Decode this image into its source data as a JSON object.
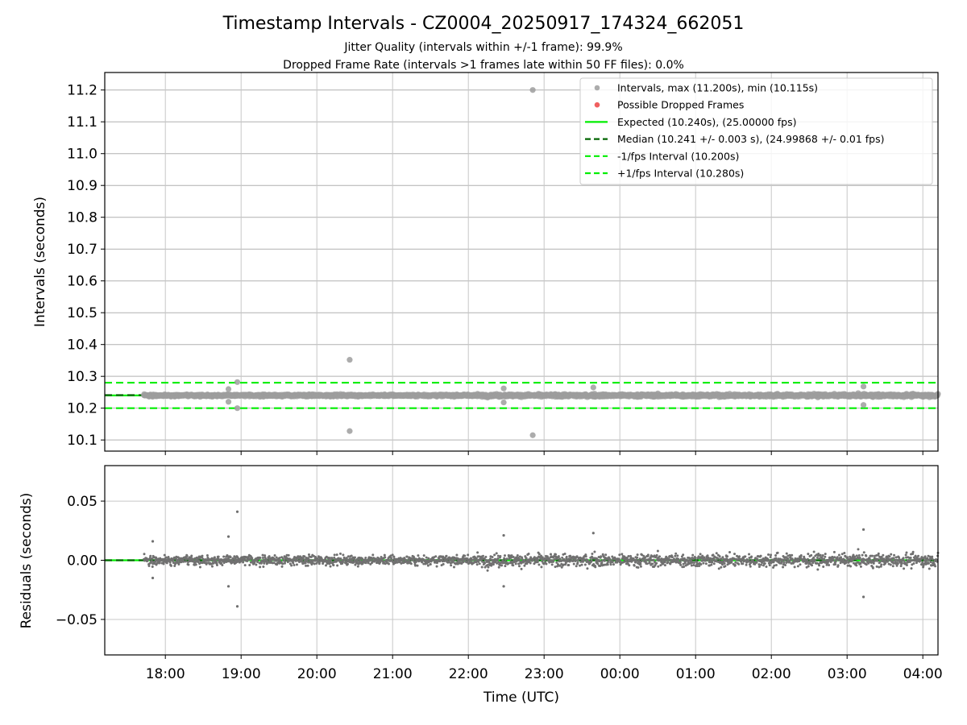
{
  "title": "Timestamp Intervals - CZ0004_20250917_174324_662051",
  "subtitle_1": "Jitter Quality (intervals within +/-1 frame): 99.9%",
  "subtitle_2": "Dropped Frame Rate (intervals >1 frames late within 50 FF files): 0.0%",
  "chart_data": [
    {
      "type": "scatter",
      "name": "intervals-panel",
      "ylabel": "Intervals (seconds)",
      "ylim": [
        10.065,
        11.255
      ],
      "yticks": [
        10.1,
        10.2,
        10.3,
        10.4,
        10.5,
        10.6,
        10.7,
        10.8,
        10.9,
        11.0,
        11.1,
        11.2
      ],
      "ytick_labels": [
        "10.1",
        "10.2",
        "10.3",
        "10.4",
        "10.5",
        "10.6",
        "10.7",
        "10.8",
        "10.9",
        "11.0",
        "11.1",
        "11.2"
      ],
      "grid": true,
      "legend_position": "top-right",
      "colors": {
        "intervals": "#9e9e9e",
        "dropped": "#f06060",
        "expected": "#00ee00",
        "median": "#006400",
        "minus_fps": "#00ee00",
        "plus_fps": "#00ee00"
      },
      "legend": [
        {
          "key": "intervals",
          "label": "Intervals, max (11.200s), min (10.115s)"
        },
        {
          "key": "dropped",
          "label": "Possible Dropped Frames"
        },
        {
          "key": "expected",
          "label": "Expected (10.240s), (25.00000 fps)"
        },
        {
          "key": "median",
          "label": "Median (10.241 +/- 0.003 s), (24.99868 +/- 0.01 fps)"
        },
        {
          "key": "minus_fps",
          "label": "-1/fps Interval (10.200s)"
        },
        {
          "key": "plus_fps",
          "label": "+1/fps Interval (10.280s)"
        }
      ],
      "reference_lines": {
        "expected": 10.24,
        "median": 10.241,
        "minus_fps": 10.2,
        "plus_fps": 10.28
      },
      "series": [
        {
          "name": "Intervals, max (11.200s), min (10.115s)",
          "typical": 10.24,
          "spread": 0.003,
          "start": "17:43",
          "end": "04:12",
          "count": 2300
        },
        {
          "name": "Possible Dropped Frames",
          "count": 0
        }
      ],
      "outliers": [
        {
          "x": "18:50",
          "y": 10.26
        },
        {
          "x": "18:50",
          "y": 10.22
        },
        {
          "x": "18:57",
          "y": 10.282
        },
        {
          "x": "18:57",
          "y": 10.2
        },
        {
          "x": "20:26",
          "y": 10.352
        },
        {
          "x": "20:26",
          "y": 10.128
        },
        {
          "x": "22:28",
          "y": 10.262
        },
        {
          "x": "22:28",
          "y": 10.218
        },
        {
          "x": "22:51",
          "y": 11.2
        },
        {
          "x": "22:51",
          "y": 10.115
        },
        {
          "x": "23:39",
          "y": 10.265
        },
        {
          "x": "03:13",
          "y": 10.268
        },
        {
          "x": "03:13",
          "y": 10.21
        }
      ]
    },
    {
      "type": "scatter",
      "name": "residuals-panel",
      "ylabel": "Residuals (seconds)",
      "xlabel": "Time (UTC)",
      "ylim": [
        -0.08,
        0.08
      ],
      "yticks": [
        -0.05,
        0.0,
        0.05
      ],
      "ytick_labels": [
        "−0.05",
        "0.00",
        "0.05"
      ],
      "x_range": [
        "17:12",
        "04:12"
      ],
      "xtick_labels": [
        "18:00",
        "19:00",
        "20:00",
        "21:00",
        "22:00",
        "23:00",
        "00:00",
        "01:00",
        "02:00",
        "03:00",
        "04:00"
      ],
      "grid": true,
      "colors": {
        "residuals": "#707070",
        "zero_expected": "#00ee00",
        "zero_median": "#006400"
      },
      "series": [
        {
          "name": "residuals",
          "typical": 0.0,
          "spread": 0.004,
          "count": 2300
        }
      ],
      "outliers": [
        {
          "x": "17:50",
          "y": 0.016
        },
        {
          "x": "17:50",
          "y": -0.015
        },
        {
          "x": "18:50",
          "y": 0.02
        },
        {
          "x": "18:50",
          "y": -0.022
        },
        {
          "x": "18:57",
          "y": 0.041
        },
        {
          "x": "18:57",
          "y": -0.039
        },
        {
          "x": "22:28",
          "y": 0.021
        },
        {
          "x": "22:28",
          "y": -0.022
        },
        {
          "x": "23:39",
          "y": 0.023
        },
        {
          "x": "03:13",
          "y": 0.026
        },
        {
          "x": "03:13",
          "y": -0.031
        }
      ]
    }
  ]
}
